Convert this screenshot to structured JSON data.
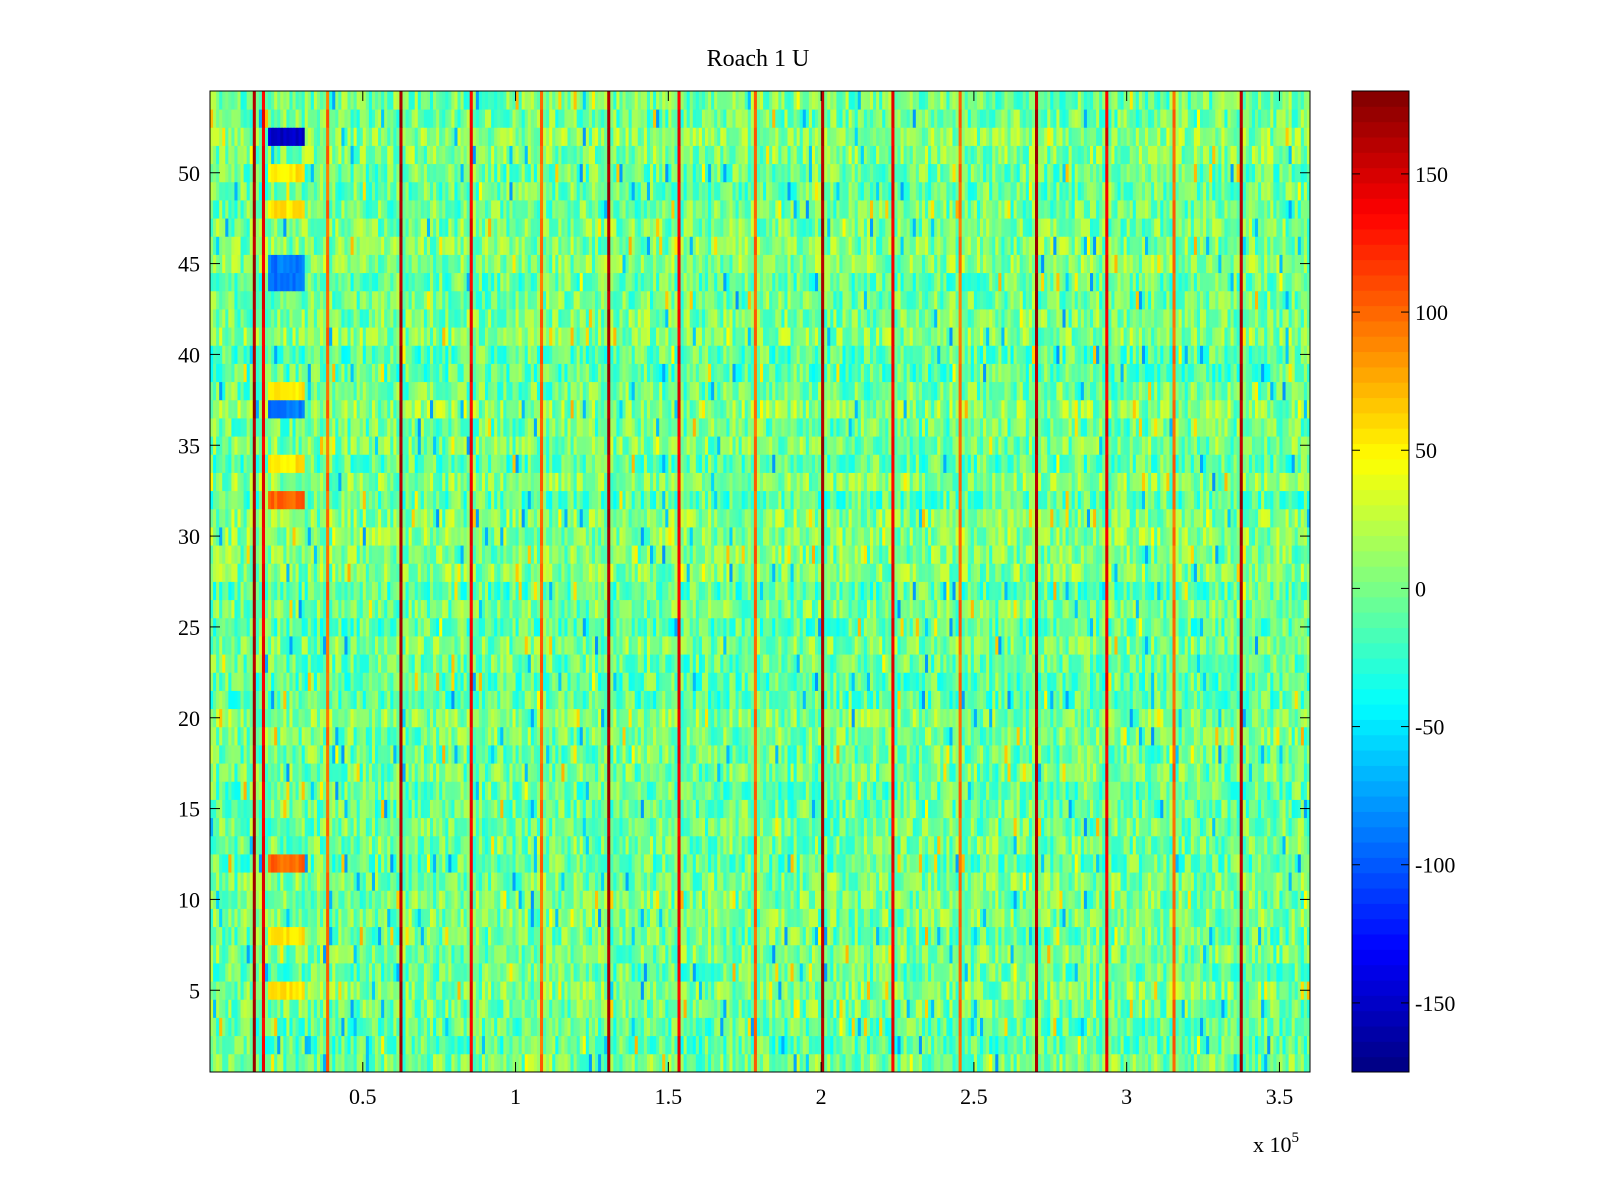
{
  "chart_data": {
    "type": "heatmap",
    "title": "Roach 1 U",
    "xlabel": "",
    "ylabel": "",
    "x_exponent_label": "x 10",
    "x_exponent_power": "5",
    "xlim": [
      0,
      3.6
    ],
    "ylim": [
      0.5,
      54.5
    ],
    "x_ticks": [
      0.5,
      1,
      1.5,
      2,
      2.5,
      3,
      3.5
    ],
    "x_tick_labels": [
      "0.5",
      "1",
      "1.5",
      "2",
      "2.5",
      "3",
      "3.5"
    ],
    "y_ticks": [
      5,
      10,
      15,
      20,
      25,
      30,
      35,
      40,
      45,
      50
    ],
    "y_tick_labels": [
      "5",
      "10",
      "15",
      "20",
      "25",
      "30",
      "35",
      "40",
      "45",
      "50"
    ],
    "n_rows": 54,
    "n_columns": 360,
    "colormap": "jet",
    "clim": [
      -175,
      180
    ],
    "colorbar_ticks": [
      -150,
      -100,
      -50,
      0,
      50,
      100,
      150
    ],
    "colorbar_tick_labels": [
      "-150",
      "-100",
      "-50",
      "0",
      "50",
      "100",
      "150"
    ],
    "background_value_range": [
      -35,
      30
    ],
    "periodic_stripes_x": [
      0.145,
      0.175,
      0.38,
      0.62,
      0.85,
      1.08,
      1.3,
      1.53,
      1.78,
      2.0,
      2.23,
      2.45,
      2.7,
      2.93,
      3.15,
      3.37
    ],
    "stripe_values": [
      175,
      150,
      110
    ],
    "hotspots": [
      {
        "x_range": [
          0.19,
          0.3
        ],
        "rows": [
          52
        ],
        "value": -150
      },
      {
        "x_range": [
          0.19,
          0.3
        ],
        "rows": [
          37,
          44,
          45
        ],
        "value": -90
      },
      {
        "x_range": [
          0.19,
          0.3
        ],
        "rows": [
          32,
          12
        ],
        "value": 100
      },
      {
        "x_range": [
          0.19,
          0.3
        ],
        "rows": [
          5,
          8,
          34,
          38,
          48,
          50
        ],
        "value": 55
      }
    ]
  }
}
